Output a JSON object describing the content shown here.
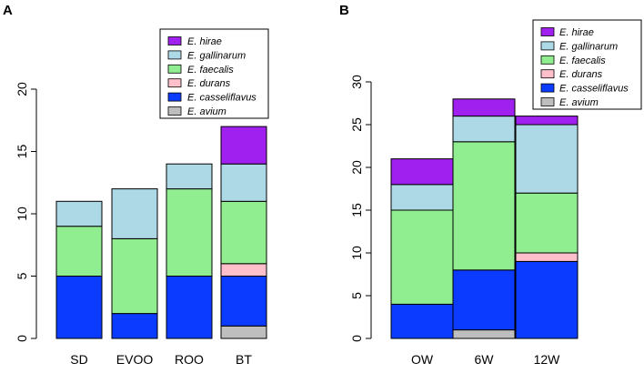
{
  "chart_data": [
    {
      "panel": "A",
      "type": "stacked-bar",
      "categories": [
        "SD",
        "EVOO",
        "ROO",
        "BT"
      ],
      "ylim": [
        0,
        20
      ],
      "yticks": [
        0,
        5,
        10,
        15,
        20
      ],
      "series": [
        {
          "name": "E. avium",
          "color": "#bebebe",
          "values": [
            0,
            0,
            0,
            1
          ]
        },
        {
          "name": "E. casseliflavus",
          "color": "#0a3bff",
          "values": [
            5,
            2,
            5,
            4
          ]
        },
        {
          "name": "E. durans",
          "color": "#ffc0cb",
          "values": [
            0,
            0,
            0,
            1
          ]
        },
        {
          "name": "E. faecalis",
          "color": "#90ee90",
          "values": [
            4,
            6,
            7,
            5
          ]
        },
        {
          "name": "E. gallinarum",
          "color": "#add8e6",
          "values": [
            2,
            4,
            2,
            3
          ]
        },
        {
          "name": "E. hirae",
          "color": "#a020f0",
          "values": [
            0,
            0,
            0,
            3
          ]
        }
      ],
      "legend": [
        "E. hirae",
        "E. gallinarum",
        "E. faecalis",
        "E. durans",
        "E. casseliflavus",
        "E. avium"
      ],
      "legend_position": "top-right"
    },
    {
      "panel": "B",
      "type": "stacked-bar",
      "categories": [
        "OW",
        "6W",
        "12W"
      ],
      "ylim": [
        0,
        30
      ],
      "yticks": [
        0,
        5,
        10,
        15,
        20,
        25,
        30
      ],
      "series": [
        {
          "name": "E. avium",
          "color": "#bebebe",
          "values": [
            0,
            1,
            0
          ]
        },
        {
          "name": "E. casseliflavus",
          "color": "#0a3bff",
          "values": [
            4,
            7,
            9
          ]
        },
        {
          "name": "E. durans",
          "color": "#ffc0cb",
          "values": [
            0,
            0,
            1
          ]
        },
        {
          "name": "E. faecalis",
          "color": "#90ee90",
          "values": [
            11,
            15,
            7
          ]
        },
        {
          "name": "E. gallinarum",
          "color": "#add8e6",
          "values": [
            3,
            3,
            8
          ]
        },
        {
          "name": "E. hirae",
          "color": "#a020f0",
          "values": [
            3,
            2,
            1
          ]
        }
      ],
      "legend": [
        "E. hirae",
        "E. gallinarum",
        "E. faecalis",
        "E. durans",
        "E. casseliflavus",
        "E. avium"
      ],
      "legend_position": "top-right"
    }
  ]
}
